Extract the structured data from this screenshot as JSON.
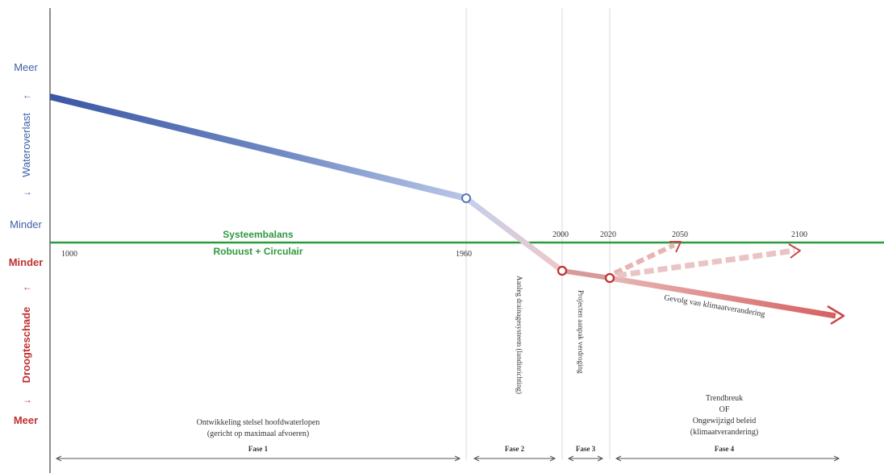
{
  "axis": {
    "upper_top": "Meer",
    "upper_bottom": "Minder",
    "upper_title": "Wateroverlast",
    "lower_top": "Minder",
    "lower_bottom": "Meer",
    "lower_title": "Droogteschade",
    "arrow_up": "↑",
    "arrow_down": "↓"
  },
  "balance": {
    "line1": "Systeembalans",
    "line2": "Robuust + Circulair"
  },
  "years": {
    "y1000": "1000",
    "y1960": "1960",
    "y2000": "2000",
    "y2020": "2020",
    "y2050": "2050",
    "y2100": "2100"
  },
  "annotations": {
    "trend_label": "Gevolg van klimaatverandering",
    "phase2_vertical": "Aanleg drainagesysteem (landinrichting)",
    "phase3_vertical": "Projecten aanpak verdroging"
  },
  "phase1": {
    "line1": "Ontwikkeling stelsel hoofdwaterlopen",
    "line2": "(gericht op maximaal afvoeren)"
  },
  "phase4": {
    "line1": "Trendbreuk",
    "line2": "OF",
    "line3": "Ongewijzigd beleid",
    "line4": "(klimaatverandering)"
  },
  "phases": {
    "fase1": "Fase 1",
    "fase2": "Fase 2",
    "fase3": "Fase 3",
    "fase4": "Fase 4"
  },
  "colors": {
    "blue": "#3f5fa8",
    "red": "#c03030",
    "green": "#2e9a3e",
    "grid": "#d6d6d6",
    "text": "#333333"
  }
}
